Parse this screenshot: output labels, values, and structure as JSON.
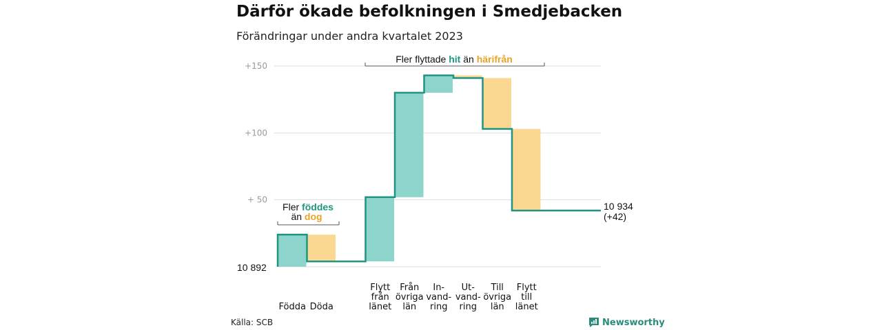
{
  "title": "Därför ökade befolkningen i Smedjebacken",
  "subtitle": "Förändringar under andra kvartalet 2023",
  "source": "Källa: SCB",
  "brand": "Newsworthy",
  "colors": {
    "line": "#1f9480",
    "increase": "#8dd4cc",
    "decrease": "#fad892",
    "hit": "#1f9480",
    "harifran": "#e9a325",
    "grid": "#dddddd",
    "axis_text": "#999999"
  },
  "chart_data": {
    "type": "waterfall",
    "base_label": "10  892",
    "base_value": 10892,
    "y_ticks": [
      "+150",
      "+100",
      "+  50"
    ],
    "y_tick_values": [
      150,
      100,
      50
    ],
    "ylim": [
      0,
      150
    ],
    "steps": [
      {
        "label": [
          "Födda"
        ],
        "from": 0,
        "to": 24,
        "type": "increase"
      },
      {
        "label": [
          "Döda"
        ],
        "from": 24,
        "to": 4,
        "type": "decrease"
      },
      {
        "label": [
          ""
        ],
        "from": 4,
        "to": 4,
        "type": "gap"
      },
      {
        "label": [
          "Flytt",
          "från",
          "länet"
        ],
        "from": 4,
        "to": 52,
        "type": "increase"
      },
      {
        "label": [
          "Från",
          "övriga",
          "län"
        ],
        "from": 52,
        "to": 130,
        "type": "increase"
      },
      {
        "label": [
          "In-",
          "vand-",
          "ring"
        ],
        "from": 130,
        "to": 143,
        "type": "increase"
      },
      {
        "label": [
          "Ut-",
          "vand-",
          "ring"
        ],
        "from": 143,
        "to": 141,
        "type": "decrease"
      },
      {
        "label": [
          "Till",
          "övriga",
          "län"
        ],
        "from": 141,
        "to": 103,
        "type": "decrease"
      },
      {
        "label": [
          "Flytt",
          "till",
          "länet"
        ],
        "from": 103,
        "to": 42,
        "type": "decrease"
      }
    ],
    "end_label": [
      "10 934",
      "(+42)"
    ],
    "annotations": [
      {
        "parts": [
          "Fler ",
          "föddes"
        ],
        "line2": [
          "än ",
          "dog"
        ]
      },
      {
        "parts": [
          "Fler flyttade ",
          "hit",
          " än ",
          "härifrån"
        ]
      }
    ]
  }
}
